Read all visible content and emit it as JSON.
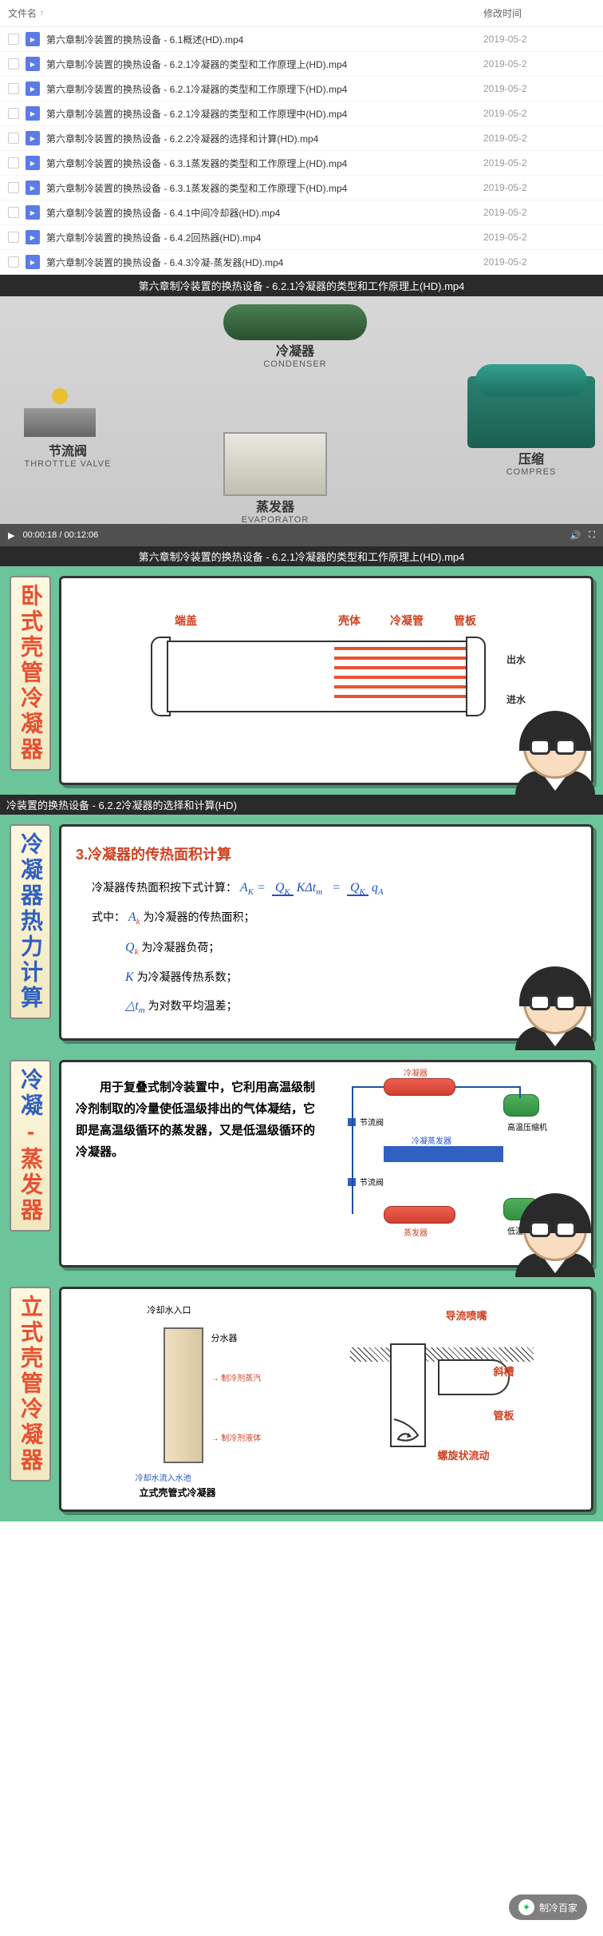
{
  "file_list": {
    "header_name": "文件名",
    "header_date": "修改时间",
    "sort_indicator": "↑",
    "files": [
      {
        "name": "第六章制冷装置的换热设备 - 6.1概述(HD).mp4",
        "date": "2019-05-2"
      },
      {
        "name": "第六章制冷装置的换热设备 - 6.2.1冷凝器的类型和工作原理上(HD).mp4",
        "date": "2019-05-2"
      },
      {
        "name": "第六章制冷装置的换热设备 - 6.2.1冷凝器的类型和工作原理下(HD).mp4",
        "date": "2019-05-2"
      },
      {
        "name": "第六章制冷装置的换热设备 - 6.2.1冷凝器的类型和工作原理中(HD).mp4",
        "date": "2019-05-2"
      },
      {
        "name": "第六章制冷装置的换热设备 - 6.2.2冷凝器的选择和计算(HD).mp4",
        "date": "2019-05-2"
      },
      {
        "name": "第六章制冷装置的换热设备 - 6.3.1蒸发器的类型和工作原理上(HD).mp4",
        "date": "2019-05-2"
      },
      {
        "name": "第六章制冷装置的换热设备 - 6.3.1蒸发器的类型和工作原理下(HD).mp4",
        "date": "2019-05-2"
      },
      {
        "name": "第六章制冷装置的换热设备 - 6.4.1中间冷却器(HD).mp4",
        "date": "2019-05-2"
      },
      {
        "name": "第六章制冷装置的换热设备 - 6.4.2回热器(HD).mp4",
        "date": "2019-05-2"
      },
      {
        "name": "第六章制冷装置的换热设备 - 6.4.3冷凝-蒸发器(HD).mp4",
        "date": "2019-05-2"
      }
    ]
  },
  "video1": {
    "title": "第六章制冷装置的换热设备 - 6.2.1冷凝器的类型和工作原理上(HD).mp4",
    "time_current": "00:00:18",
    "time_total": "00:12:06",
    "components": {
      "condenser_cn": "冷凝器",
      "condenser_en": "CONDENSER",
      "throttle_cn": "节流阀",
      "throttle_en": "THROTTLE VALVE",
      "evaporator_cn": "蒸发器",
      "evaporator_en": "EVAPORATOR",
      "compressor_cn": "压缩",
      "compressor_en": "COMPRES"
    }
  },
  "slide2": {
    "title": "第六章制冷装置的换热设备 - 6.2.1冷凝器的类型和工作原理上(HD).mp4",
    "vtitle": "卧式壳管冷凝器",
    "labels": {
      "end_cap": "端盖",
      "shell": "壳体",
      "cond_tube": "冷凝管",
      "tube_plate": "管板",
      "water_out": "出水",
      "water_in": "进水"
    },
    "colors": {
      "tube": "#e85030",
      "label": "#d04020",
      "line": "#333333"
    }
  },
  "slide3": {
    "title": "冷装置的换热设备 - 6.2.2冷凝器的选择和计算(HD)",
    "vtitle": "冷凝器热力计算",
    "section_title": "3.冷凝器的传热面积计算",
    "line1": "冷凝器传热面积按下式计算：",
    "formula_var_A": "A",
    "formula_sub_K": "K",
    "formula_var_Q": "Q",
    "formula_var_K2": "K",
    "formula_var_dt": "Δt",
    "formula_sub_m": "m",
    "formula_var_q": "q",
    "formula_sub_A": "A",
    "line2_prefix": "式中：",
    "line2_text": "为冷凝器的传热面积；",
    "line3_var": "Q",
    "line3_sub": "k",
    "line3_text": "为冷凝器负荷；",
    "line4_var": "K",
    "line4_text": "为冷凝器传热系数；",
    "line5_var": "△t",
    "line5_sub": "m",
    "line5_text": "为对数平均温差；",
    "colors": {
      "title": "#d04020",
      "var": "#2050c0",
      "text": "#000000"
    }
  },
  "slide4": {
    "vtitle_p1": "冷凝",
    "vtitle_sep": "‐",
    "vtitle_p2": "蒸发器",
    "text": "　　用于复叠式制冷装置中，它利用高温级制冷剂制取的冷量使低温级排出的气体凝结，它即是高温级循环的蒸发器，又是低温级循环的冷凝器。",
    "labels": {
      "condenser": "冷凝器",
      "throttle": "节流阀",
      "cond_evap": "冷凝蒸发器",
      "evaporator": "蒸发器",
      "high_compressor": "高温压缩机",
      "low_compressor": "低温压缩机"
    },
    "colors": {
      "red": "#e04030",
      "green": "#40a050",
      "blue": "#3060c0",
      "bg": "#ffffff"
    }
  },
  "slide5": {
    "vtitle": "立式壳管冷凝器",
    "labels": {
      "water_inlet": "冷却水入口",
      "water_dist": "分水器",
      "refrig_vapor_in": "制冷剂蒸汽",
      "refrig_liquid_out": "制冷剂液体",
      "caption_left": "立式壳管式冷凝器",
      "water_outlet_pool": "冷却水流入水池",
      "nozzle": "导流喷嘴",
      "chute": "斜槽",
      "tube_plate": "管板",
      "spiral_flow": "螺旋状流动"
    },
    "colors": {
      "tube_fill": "#e8d8b0",
      "line": "#333333",
      "label_red": "#d04020",
      "water": "#60a0e0"
    }
  },
  "footer": {
    "account": "制冷百家"
  }
}
